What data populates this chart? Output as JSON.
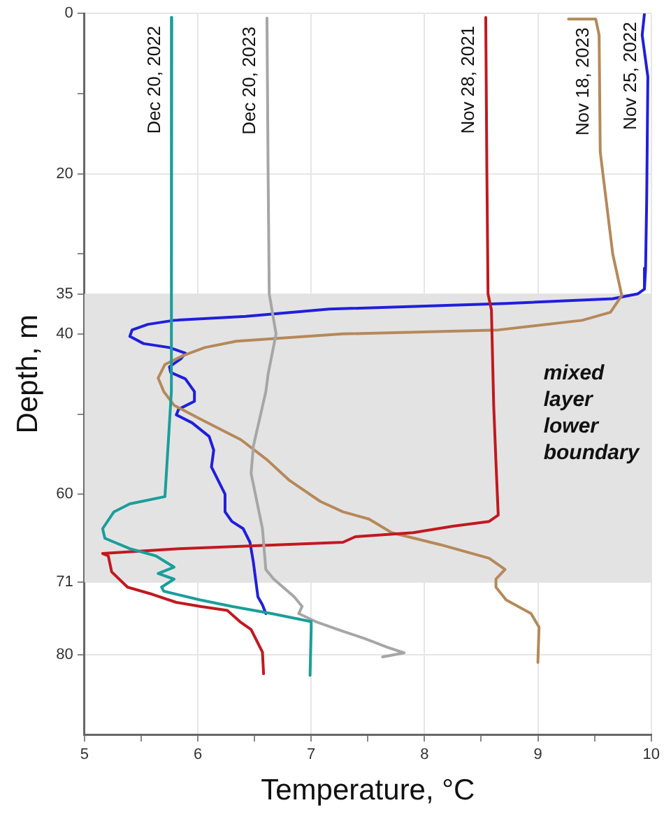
{
  "chart_data": {
    "type": "line",
    "xlabel": "Temperature, °C",
    "ylabel": "Depth, m",
    "xlim": [
      5,
      10
    ],
    "xticks": [
      5,
      {
        "value": 5.5,
        "label": null
      },
      6,
      {
        "value": 6.5,
        "label": null
      },
      7,
      {
        "value": 7.5,
        "label": null
      },
      8,
      {
        "value": 8.5,
        "label": null
      },
      9,
      {
        "value": 9.5,
        "label": null
      },
      10
    ],
    "ylim": [
      90,
      0
    ],
    "yticks": [
      0,
      {
        "value": 10,
        "label": null
      },
      20,
      {
        "value": 30,
        "label": null
      },
      35,
      40,
      {
        "value": 50,
        "label": null
      },
      60,
      71,
      80
    ],
    "grid": true,
    "marker": "none",
    "line_style": "solid",
    "bands": [
      {
        "axis": "y",
        "from": 35,
        "to": 71,
        "color": "#e4e3e4"
      }
    ],
    "annotations": [
      "mixed layer lower boundary"
    ],
    "orientation": "horizontal",
    "series": [
      {
        "name": "Dec 20, 2022",
        "color": "#1a9e9a",
        "values": [
          5.77,
          5.77,
          5.76,
          5.77,
          5.71,
          5.4,
          5.26,
          5.16,
          5.18,
          5.4,
          5.63,
          5.79,
          5.65,
          5.79,
          5.68,
          5.7,
          6.02,
          6.3,
          6.65,
          7.0,
          7.0,
          6.99
        ],
        "x": [
          0.5,
          20,
          40,
          47.2,
          60.3,
          61.2,
          62.2,
          64.3,
          65.5,
          66.8,
          67.7,
          69.1,
          69.9,
          70.6,
          71.6,
          72.1,
          73.2,
          74,
          74.9,
          75.9,
          76.8,
          82.6
        ]
      },
      {
        "name": "Dec 20, 2023",
        "color": "#a6a6a6",
        "values": [
          6.61,
          6.62,
          6.63,
          6.69,
          6.62,
          6.6,
          6.49,
          6.47,
          6.57,
          6.6,
          6.67,
          6.85,
          6.92,
          6.89,
          7.04,
          7.28,
          7.47,
          7.67,
          7.82,
          7.63
        ],
        "x": [
          0.6,
          20,
          35,
          40,
          45,
          47.2,
          54,
          57.4,
          64.3,
          69.4,
          70.6,
          72.8,
          74,
          74.9,
          75.9,
          77.1,
          78,
          79.1,
          79.8,
          80.3
        ]
      },
      {
        "name": "Nov 28, 2021",
        "color": "#c0191f",
        "values": [
          8.54,
          8.55,
          8.56,
          8.59,
          8.61,
          8.63,
          8.65,
          8.57,
          8.25,
          7.9,
          7.39,
          7.28,
          5.83,
          5.16,
          5.21,
          5.24,
          5.38,
          5.6,
          5.81,
          6.02,
          6.26,
          6.38,
          6.47,
          6.57,
          6.58
        ],
        "x": [
          0.5,
          20,
          35,
          37,
          48.9,
          56,
          62.6,
          63.4,
          64,
          64.8,
          65.3,
          66,
          66.8,
          67.4,
          67.7,
          69.7,
          71.6,
          72.5,
          73.5,
          74,
          74.5,
          76,
          76.9,
          79.7,
          82.4
        ]
      },
      {
        "name": "Nov 18, 2023",
        "color": "#b5895a",
        "values": [
          9.27,
          9.51,
          9.54,
          9.55,
          9.66,
          9.74,
          9.64,
          9.39,
          8.65,
          7.28,
          6.34,
          6.06,
          5.87,
          5.71,
          5.65,
          5.7,
          5.79,
          6.02,
          6.38,
          6.61,
          6.81,
          7.08,
          7.28,
          7.51,
          7.71,
          8.14,
          8.57,
          8.71,
          8.63,
          8.63,
          8.72,
          8.94,
          9.01,
          9.0
        ],
        "x": [
          0.7,
          0.7,
          2.7,
          17.3,
          30,
          35.2,
          37.3,
          38.3,
          39.5,
          40,
          40.9,
          41.7,
          42.7,
          43.8,
          45.5,
          47.2,
          48.9,
          50.6,
          53.2,
          55.7,
          58.3,
          60.9,
          62.2,
          63.1,
          64.8,
          66.3,
          68,
          69.4,
          70.6,
          71.6,
          73.2,
          74.9,
          76.6,
          81
        ]
      },
      {
        "name": "Nov 25, 2022",
        "color": "#1f1fdc",
        "values": [
          9.94,
          9.92,
          9.97,
          9.96,
          9.95,
          9.94,
          9.88,
          9.66,
          8.72,
          7.16,
          6.42,
          5.79,
          5.56,
          5.42,
          5.4,
          5.52,
          5.75,
          5.89,
          5.85,
          5.75,
          5.76,
          5.89,
          5.97,
          5.97,
          5.83,
          5.81,
          5.95,
          6.1,
          6.14,
          6.12,
          6.18,
          6.24,
          6.24,
          6.3,
          6.4,
          6.46,
          6.49,
          6.53,
          6.57,
          6.6
        ],
        "x": [
          0,
          2.7,
          7.9,
          23,
          31.8,
          34.4,
          35,
          35.6,
          36.2,
          36.9,
          37.8,
          38.3,
          38.8,
          39.5,
          40.3,
          41.2,
          41.7,
          42.4,
          43.1,
          44.1,
          44.8,
          45.6,
          47.2,
          48.4,
          49.4,
          50.1,
          51.1,
          52.8,
          54.5,
          56.6,
          58.3,
          60,
          62.2,
          63.4,
          64.3,
          66,
          68.5,
          72.8,
          73.8,
          74.9
        ]
      }
    ]
  }
}
